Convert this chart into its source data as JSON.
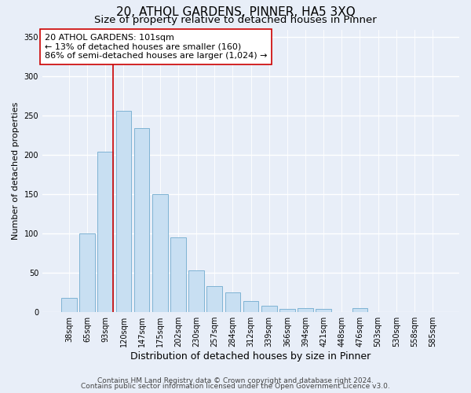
{
  "title": "20, ATHOL GARDENS, PINNER, HA5 3XQ",
  "subtitle": "Size of property relative to detached houses in Pinner",
  "xlabel": "Distribution of detached houses by size in Pinner",
  "ylabel": "Number of detached properties",
  "bar_labels": [
    "38sqm",
    "65sqm",
    "93sqm",
    "120sqm",
    "147sqm",
    "175sqm",
    "202sqm",
    "230sqm",
    "257sqm",
    "284sqm",
    "312sqm",
    "339sqm",
    "366sqm",
    "394sqm",
    "421sqm",
    "448sqm",
    "476sqm",
    "503sqm",
    "530sqm",
    "558sqm",
    "585sqm"
  ],
  "bar_values": [
    18,
    100,
    204,
    256,
    234,
    150,
    95,
    53,
    33,
    25,
    14,
    8,
    4,
    5,
    4,
    0,
    5,
    0,
    0,
    0,
    0
  ],
  "bar_color": "#c8dff2",
  "bar_edge_color": "#7fb3d3",
  "vline_x_index": 2,
  "vline_color": "#cc0000",
  "annotation_line1": "20 ATHOL GARDENS: 101sqm",
  "annotation_line2": "← 13% of detached houses are smaller (160)",
  "annotation_line3": "86% of semi-detached houses are larger (1,024) →",
  "annotation_box_color": "#ffffff",
  "annotation_box_edge": "#cc0000",
  "ylim": [
    0,
    360
  ],
  "yticks": [
    0,
    50,
    100,
    150,
    200,
    250,
    300,
    350
  ],
  "footer_line1": "Contains HM Land Registry data © Crown copyright and database right 2024.",
  "footer_line2": "Contains public sector information licensed under the Open Government Licence v3.0.",
  "bg_color": "#e8eef8",
  "title_fontsize": 11,
  "subtitle_fontsize": 9.5,
  "xlabel_fontsize": 9,
  "ylabel_fontsize": 8,
  "tick_fontsize": 7,
  "annot_fontsize": 8,
  "footer_fontsize": 6.5
}
